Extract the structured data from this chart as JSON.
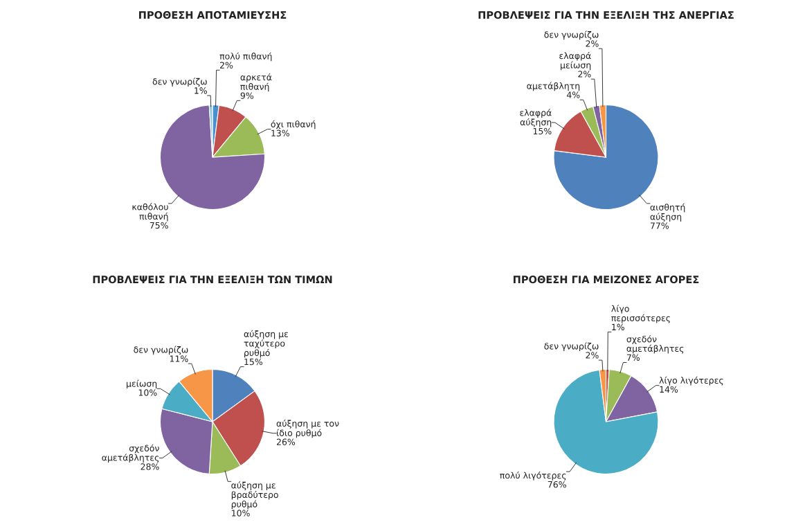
{
  "chart_data": [
    {
      "type": "pie",
      "title": "ΠΡΟΘΕΣΗ ΑΠΟΤΑΜΙΕΥΣΗΣ",
      "categories": [
        "πολύ πιθανή",
        "αρκετά\nπιθανή",
        "όχι πιθανή",
        "καθόλου\nπιθανή",
        "δεν γνωρίζω"
      ],
      "values": [
        2,
        9,
        13,
        75,
        1
      ],
      "value_labels": [
        "2%",
        "9%",
        "13%",
        "75%",
        "1%"
      ],
      "colors": [
        "#4a8fd0",
        "#c0504d",
        "#9bbb59",
        "#8064a2",
        "#93cddd"
      ]
    },
    {
      "type": "pie",
      "title": "ΠΡΟΒΛΕΨΕΙΣ ΓΙΑ ΤΗΝ ΕΞΕΛΙΞΗ ΤΗΣ ΑΝΕΡΓΙΑΣ",
      "categories": [
        "αισθητή\nαύξηση",
        "ελαφρά\nαύξηση",
        "αμετάβλητη",
        "ελαφρά\nμείωση",
        "δεν γνωρίζω"
      ],
      "values": [
        77,
        15,
        4,
        2,
        2
      ],
      "value_labels": [
        "77%",
        "15%",
        "4%",
        "2%",
        "2%"
      ],
      "colors": [
        "#4f81bd",
        "#c0504d",
        "#9bbb59",
        "#8064a2",
        "#f79646"
      ]
    },
    {
      "type": "pie",
      "title": "ΠΡΟΒΛΕΨΕΙΣ ΓΙΑ ΤΗΝ ΕΞΕΛΙΞΗ ΤΩΝ ΤΙΜΩΝ",
      "categories": [
        "αύξηση με\nταχύτερο\nρυθμό",
        "αύξηση με τον\nίδιο ρυθμό",
        "αύξηση με\nβραδύτερο\nρυθμό",
        "σχεδόν\nαμετάβλητες",
        "μείωση",
        "δεν γνωρίζω"
      ],
      "values": [
        15,
        26,
        10,
        28,
        10,
        11
      ],
      "value_labels": [
        "15%",
        "26%",
        "10%",
        "28%",
        "10%",
        "11%"
      ],
      "colors": [
        "#4f81bd",
        "#c0504d",
        "#9bbb59",
        "#8064a2",
        "#4bacc6",
        "#f79646"
      ]
    },
    {
      "type": "pie",
      "title": "ΠΡΟΘΕΣΗ ΓΙΑ ΜΕΙΖΟΝΕΣ ΑΓΟΡΕΣ",
      "categories": [
        "λίγο\nπερισσότερες",
        "σχεδόν\nαμετάβλητες",
        "λίγο λιγότερες",
        "πολύ λιγότερες",
        "δεν γνωρίζω"
      ],
      "values": [
        1,
        7,
        14,
        76,
        2
      ],
      "value_labels": [
        "1%",
        "7%",
        "14%",
        "76%",
        "2%"
      ],
      "colors": [
        "#c0504d",
        "#9bbb59",
        "#8064a2",
        "#4bacc6",
        "#f79646"
      ]
    }
  ]
}
